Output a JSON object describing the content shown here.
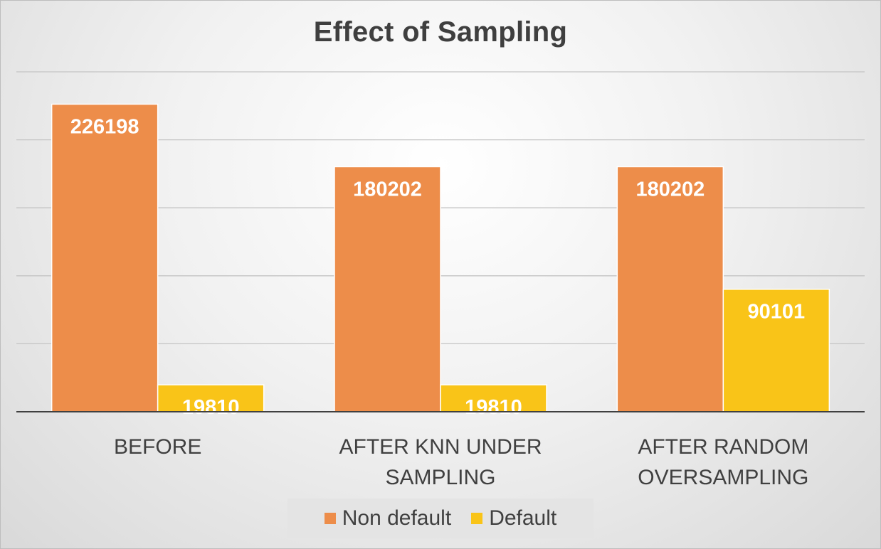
{
  "chart_data": {
    "type": "bar",
    "title": "Effect of Sampling",
    "categories": [
      [
        "BEFORE"
      ],
      [
        "AFTER KNN UNDER",
        "SAMPLING"
      ],
      [
        "AFTER RANDOM",
        "OVERSAMPLING"
      ]
    ],
    "series": [
      {
        "name": "Non default",
        "values": [
          226198,
          180202,
          180202
        ],
        "color": "#ed8d4a"
      },
      {
        "name": "Default",
        "values": [
          19810,
          19810,
          90101
        ],
        "color": "#f9c418"
      }
    ],
    "ylim": [
      0,
      250000
    ],
    "grid": true,
    "data_labels": true,
    "legend": "bottom"
  }
}
